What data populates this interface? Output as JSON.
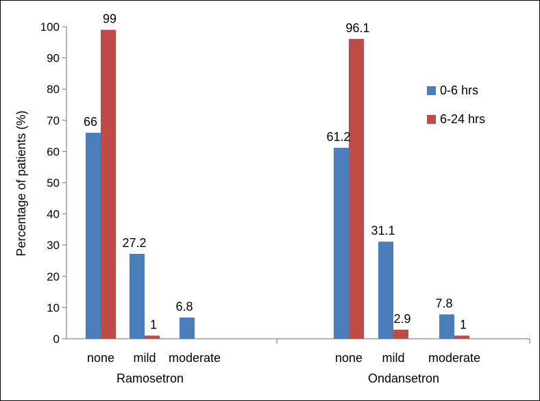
{
  "chart_data": {
    "type": "bar",
    "title": "",
    "xlabel": "",
    "ylabel": "Percentage of patients (%)",
    "ylim": [
      0,
      100
    ],
    "yticks": [
      0,
      10,
      20,
      30,
      40,
      50,
      60,
      70,
      80,
      90,
      100
    ],
    "grid": false,
    "legend_position": "right",
    "groups": [
      {
        "name": "Ramosetron",
        "categories": [
          "none",
          "mild",
          "moderate"
        ]
      },
      {
        "name": "Ondansetron",
        "categories": [
          "none",
          "mild",
          "moderate"
        ]
      }
    ],
    "series": [
      {
        "name": "0-6 hrs",
        "color": "#4a7ebb",
        "values": [
          66,
          27.2,
          6.8,
          61.2,
          31.1,
          7.8
        ],
        "labels": [
          "66",
          "27.2",
          "6.8",
          "61.2",
          "31.1",
          "7.8"
        ]
      },
      {
        "name": "6-24 hrs",
        "color": "#be4b48",
        "values": [
          99,
          1,
          0,
          96.1,
          2.9,
          1
        ],
        "labels": [
          "99",
          "1",
          "",
          "96.1",
          "2.9",
          "1"
        ]
      }
    ]
  }
}
